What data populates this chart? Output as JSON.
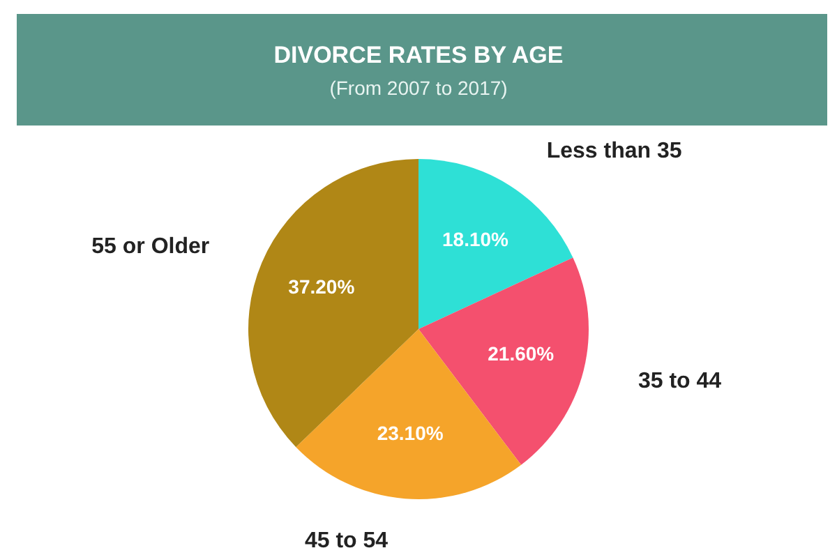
{
  "chart_data": {
    "type": "pie",
    "title": "DIVORCE RATES BY AGE",
    "subtitle": "(From 2007 to 2017)",
    "categories": [
      "Less than 35",
      "35 to 44",
      "45 to 54",
      "55 or Older"
    ],
    "values": [
      18.1,
      21.6,
      23.1,
      37.2
    ],
    "value_labels": [
      "18.10%",
      "21.60%",
      "23.10%",
      "37.20%"
    ],
    "colors": [
      "#2ee0d6",
      "#f4506e",
      "#f5a42a",
      "#b08716"
    ],
    "legend": false
  }
}
